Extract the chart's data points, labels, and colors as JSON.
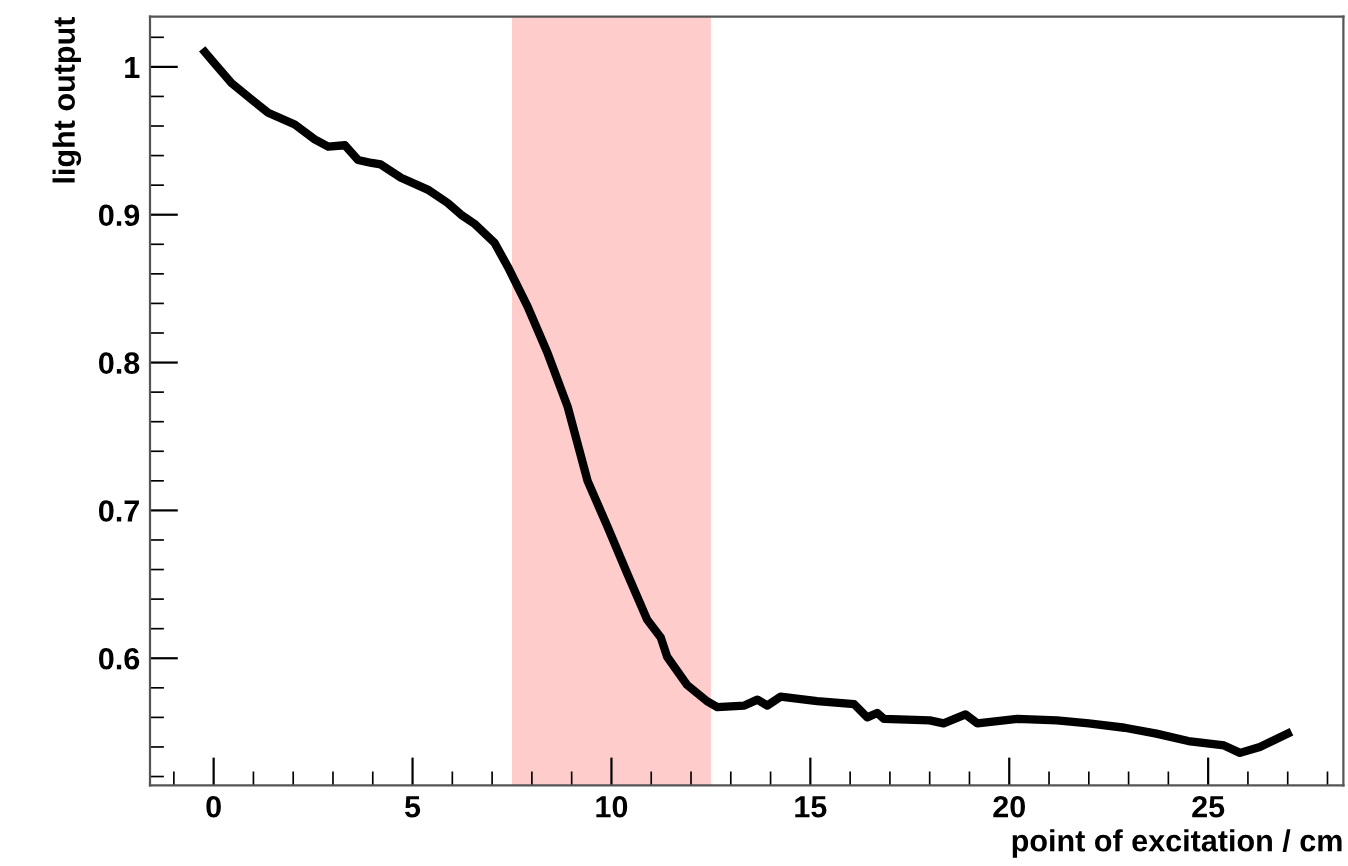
{
  "chart_data": {
    "type": "line",
    "xlabel": "point of excitation / cm",
    "ylabel": "light output",
    "x": [
      -0.22,
      0.0,
      0.45,
      0.95,
      1.37,
      2.04,
      2.54,
      2.88,
      3.3,
      3.63,
      3.97,
      4.2,
      4.71,
      5.38,
      5.88,
      6.22,
      6.55,
      7.06,
      7.39,
      7.89,
      8.4,
      8.9,
      9.4,
      9.9,
      10.4,
      10.9,
      11.24,
      11.4,
      11.9,
      12.4,
      12.66,
      13.34,
      13.67,
      13.92,
      14.25,
      15.17,
      16.1,
      16.43,
      16.68,
      16.85,
      18.0,
      18.35,
      18.9,
      19.2,
      20.2,
      21.2,
      22.0,
      22.9,
      23.7,
      24.5,
      25.4,
      25.8,
      26.3,
      27.0
    ],
    "series": [
      {
        "color": "#000000",
        "values": [
          1.01,
          1.003,
          0.989,
          0.978,
          0.969,
          0.961,
          0.951,
          0.946,
          0.947,
          0.937,
          0.935,
          0.934,
          0.925,
          0.917,
          0.908,
          0.9,
          0.894,
          0.881,
          0.865,
          0.838,
          0.806,
          0.77,
          0.72,
          0.689,
          0.657,
          0.626,
          0.614,
          0.601,
          0.582,
          0.571,
          0.567,
          0.568,
          0.572,
          0.568,
          0.574,
          0.571,
          0.569,
          0.56,
          0.563,
          0.559,
          0.558,
          0.556,
          0.562,
          0.556,
          0.559,
          0.558,
          0.556,
          0.553,
          0.549,
          0.544,
          0.541,
          0.536,
          0.54,
          0.549
        ]
      }
    ],
    "xlim": [
      -1.6,
      28.4
    ],
    "ylim": [
      0.514,
      1.034
    ],
    "xticks": [
      0,
      5,
      10,
      15,
      20,
      25
    ],
    "yticks": [
      0.6,
      0.7,
      0.8,
      0.9,
      1
    ],
    "bands": [
      {
        "axis": "x",
        "from": 7.5,
        "to": 12.5,
        "color": "#ffcccc"
      }
    ],
    "grid": false,
    "legend": false,
    "marker": "none",
    "line_style": "solid"
  }
}
